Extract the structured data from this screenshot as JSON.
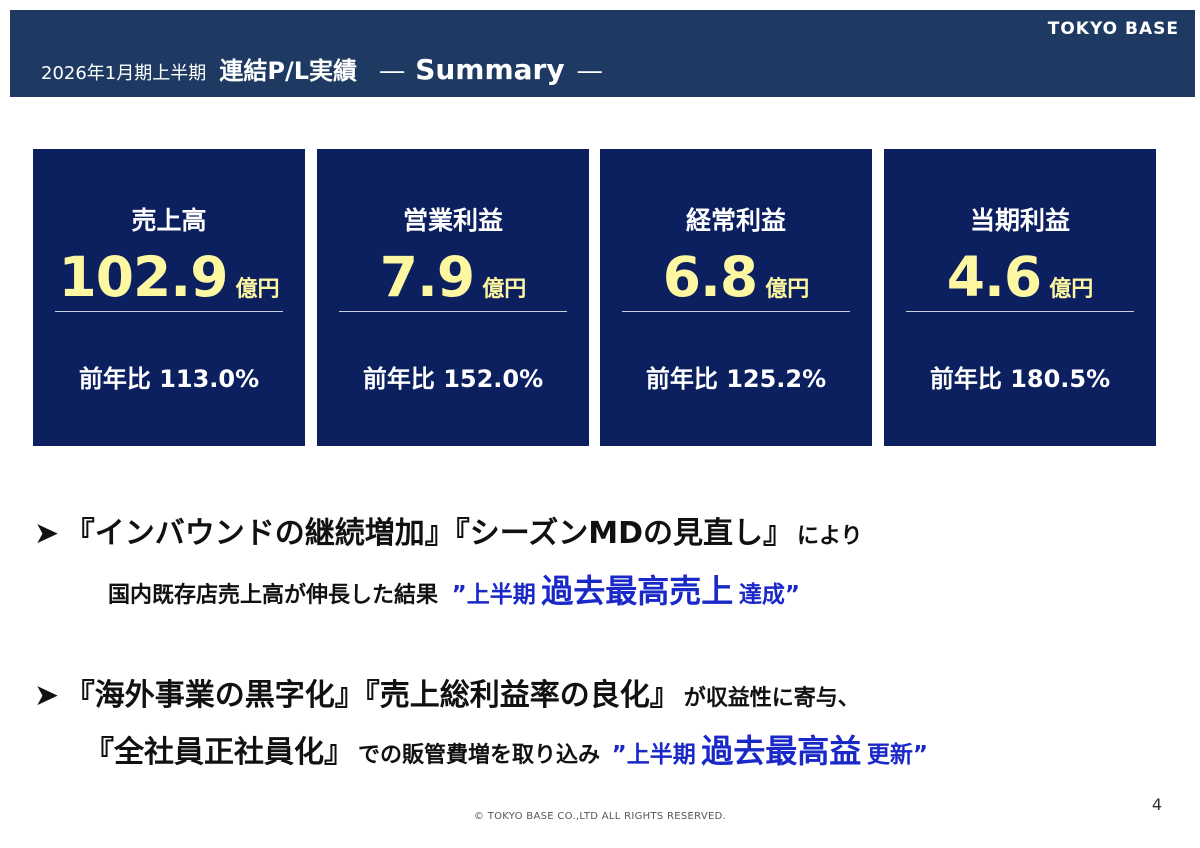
{
  "brand": "TOKYO BASE",
  "title": {
    "period": "2026年1月期上半期",
    "main": "連結P/L実績",
    "dash_left": "―",
    "summary": "Summary",
    "dash_right": "―"
  },
  "cards": [
    {
      "label": "売上高",
      "value": "102.9",
      "unit": "億円",
      "yoy_label": "前年比",
      "yoy_value": "113.0%"
    },
    {
      "label": "営業利益",
      "value": "7.9",
      "unit": "億円",
      "yoy_label": "前年比",
      "yoy_value": "152.0%"
    },
    {
      "label": "経常利益",
      "value": "6.8",
      "unit": "億円",
      "yoy_label": "前年比",
      "yoy_value": "125.2%"
    },
    {
      "label": "当期利益",
      "value": "4.6",
      "unit": "億円",
      "yoy_label": "前年比",
      "yoy_value": "180.5%"
    }
  ],
  "bullets": [
    {
      "arrow": "➤",
      "line1": {
        "a": "『インバウンドの継続増加』",
        "b": "『シーズンMDの見直し』",
        "c": "により"
      },
      "line2": {
        "a": "国内既存店売上高が伸長した結果",
        "q1": "”上半期",
        "highlight": "過去最高売上",
        "tail": "達成”"
      }
    },
    {
      "arrow": "➤",
      "line1": {
        "a": "『海外事業の黒字化』",
        "b": "『売上総利益率の良化』",
        "c": "が収益性に寄与、"
      },
      "line2": {
        "a": "『全社員正社員化』",
        "b": "での販管費増を取り込み",
        "q1": "”上半期",
        "highlight": "過去最高益",
        "tail": "更新”"
      }
    }
  ],
  "copyright": "© TOKYO BASE CO.,LTD  ALL RIGHTS RESERVED.",
  "page_number": "4"
}
